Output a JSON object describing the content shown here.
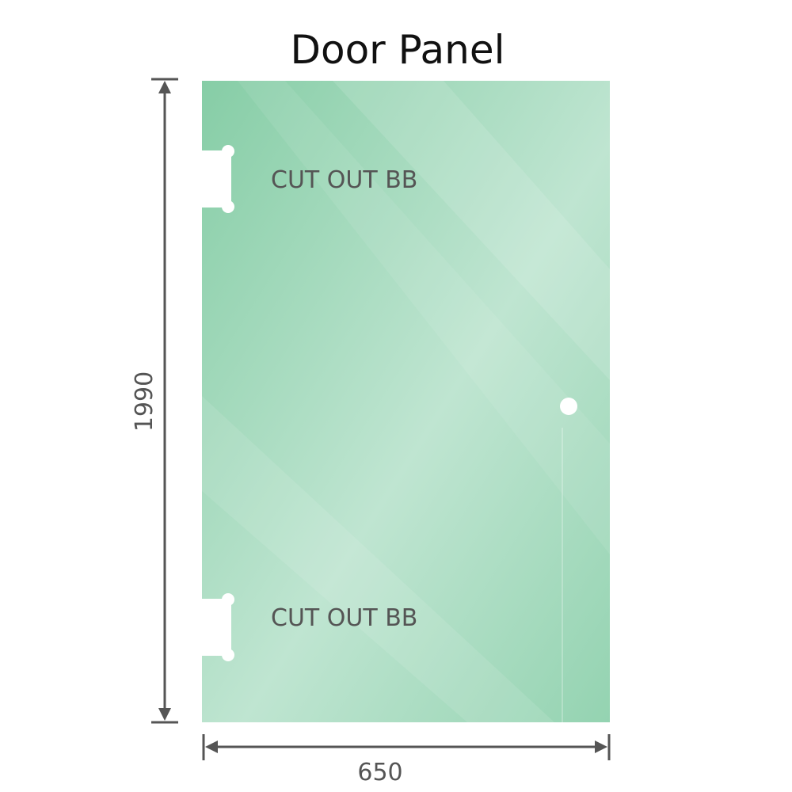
{
  "title": "Door Panel",
  "cutout_top_label": "CUT OUT BB",
  "cutout_bottom_label": "CUT OUT BB",
  "height_dimension": "1990",
  "width_dimension": "650",
  "colors": {
    "glass": "#8fd0ad",
    "glass_light": "#c2e6d3",
    "dimension_line": "#555555"
  }
}
